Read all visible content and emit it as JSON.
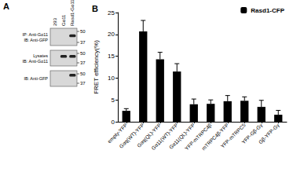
{
  "chart_data": {
    "type": "bar",
    "title": "B",
    "categories": [
      "empty-YFP",
      "Gαq(WT)-YFP",
      "Gαq(QL)-YFP",
      "Gα11(WT)-YFP",
      "Gα11(QL)-YFP",
      "YFP-mTRPC4β",
      "mTRPC4β-YFP",
      "YFP-mTRPC5",
      "YFP-Gβ-Gγ",
      "Gβ-YFP-Gγ"
    ],
    "series": [
      {
        "name": "Rasd1-CFP",
        "color": "#000000",
        "values": [
          2.5,
          20.7,
          14.3,
          11.5,
          4.0,
          4.1,
          4.7,
          4.8,
          3.4,
          1.6
        ],
        "errors": [
          0.5,
          2.5,
          1.6,
          1.8,
          1.2,
          0.9,
          1.3,
          0.9,
          1.5,
          1.0
        ]
      }
    ],
    "ylabel": "FRET efficiency(%)",
    "ylim": [
      0,
      25
    ],
    "yticks": [
      0,
      5,
      10,
      15,
      20,
      25
    ],
    "grid": false,
    "legend": "upper right"
  },
  "panel_a": {
    "label": "A",
    "lanes": [
      "293",
      "Gα11",
      "Rasd1-Gα11"
    ],
    "blots": [
      {
        "label": [
          "IP: Anti-Gα11",
          "IB: Anti-GFP"
        ],
        "markers": [
          50,
          37
        ]
      },
      {
        "label": [
          "Lysates",
          "IB: Anti-Gα11"
        ],
        "markers": [
          50,
          37
        ]
      },
      {
        "label": [
          "IB: Anti-GFP"
        ],
        "markers": [
          50,
          37
        ]
      }
    ]
  }
}
